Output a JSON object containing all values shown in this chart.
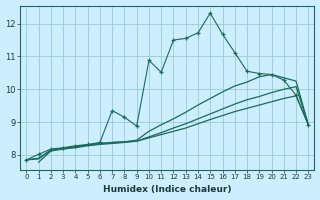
{
  "xlabel": "Humidex (Indice chaleur)",
  "ylabel": "",
  "bg_color": "#cceeff",
  "grid_color": "#99cccc",
  "line_color": "#1a6b5a",
  "xlim": [
    -0.5,
    23.5
  ],
  "ylim": [
    7.55,
    12.55
  ],
  "yticks": [
    8,
    9,
    10,
    11,
    12
  ],
  "xticks": [
    0,
    1,
    2,
    3,
    4,
    5,
    6,
    7,
    8,
    9,
    10,
    11,
    12,
    13,
    14,
    15,
    16,
    17,
    18,
    19,
    20,
    21,
    22,
    23
  ],
  "line1_x": [
    0,
    1,
    2,
    3,
    4,
    5,
    6,
    7,
    8,
    9,
    10,
    11,
    12,
    13,
    14,
    15,
    16,
    17,
    18,
    19,
    20,
    21,
    22,
    23
  ],
  "line1_y": [
    7.85,
    8.02,
    8.18,
    8.22,
    8.28,
    8.32,
    8.38,
    9.35,
    9.15,
    8.88,
    10.88,
    10.52,
    11.5,
    11.55,
    11.72,
    12.32,
    11.68,
    11.12,
    10.55,
    10.48,
    10.45,
    10.28,
    9.82,
    8.92
  ],
  "line2_x": [
    0,
    1,
    2,
    3,
    4,
    5,
    6,
    7,
    8,
    9,
    10,
    11,
    12,
    13,
    14,
    15,
    16,
    17,
    18,
    19,
    20,
    21,
    22,
    23
  ],
  "line2_y": [
    7.85,
    7.9,
    8.15,
    8.2,
    8.25,
    8.3,
    8.35,
    8.38,
    8.4,
    8.42,
    8.52,
    8.62,
    8.72,
    8.82,
    8.95,
    9.08,
    9.2,
    9.32,
    9.42,
    9.52,
    9.62,
    9.72,
    9.8,
    8.92
  ],
  "line3_x": [
    0,
    1,
    2,
    3,
    4,
    5,
    6,
    7,
    8,
    9,
    10,
    11,
    12,
    13,
    14,
    15,
    16,
    17,
    18,
    19,
    20,
    21,
    22,
    23
  ],
  "line3_y": [
    7.85,
    7.88,
    8.15,
    8.2,
    8.25,
    8.3,
    8.35,
    8.38,
    8.4,
    8.45,
    8.72,
    8.92,
    9.1,
    9.3,
    9.52,
    9.72,
    9.92,
    10.1,
    10.22,
    10.38,
    10.45,
    10.35,
    10.25,
    8.92
  ],
  "line4_x": [
    1,
    2,
    3,
    4,
    5,
    6,
    7,
    8,
    9,
    10,
    11,
    12,
    13,
    14,
    15,
    16,
    17,
    18,
    19,
    20,
    21,
    22,
    23
  ],
  "line4_y": [
    7.78,
    8.12,
    8.18,
    8.22,
    8.28,
    8.32,
    8.35,
    8.38,
    8.42,
    8.55,
    8.68,
    8.82,
    8.95,
    9.1,
    9.25,
    9.4,
    9.55,
    9.68,
    9.78,
    9.9,
    10.0,
    10.08,
    8.92
  ]
}
